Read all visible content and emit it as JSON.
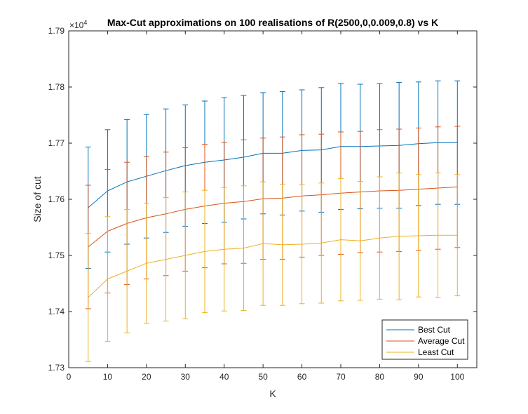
{
  "chart_data": {
    "type": "line",
    "title": "Max-Cut approximations on 100 realisations of R(2500,0,0.009,0.8) vs K",
    "xlabel": "K",
    "ylabel": "Size of cut",
    "y_exponent_label": "×10",
    "y_exponent_power": "4",
    "xlim": [
      0,
      105
    ],
    "ylim": [
      17300,
      17900
    ],
    "xticks": [
      0,
      10,
      20,
      30,
      40,
      50,
      60,
      70,
      80,
      90,
      100
    ],
    "xtick_labels": [
      "0",
      "10",
      "20",
      "30",
      "40",
      "50",
      "60",
      "70",
      "80",
      "90",
      "100"
    ],
    "yticks": [
      17300,
      17400,
      17500,
      17600,
      17700,
      17800,
      17900
    ],
    "ytick_labels": [
      "1.73",
      "1.74",
      "1.75",
      "1.76",
      "1.77",
      "1.78",
      "1.79"
    ],
    "grid": false,
    "legend_position": "bottom-right",
    "x": [
      5,
      10,
      15,
      20,
      25,
      30,
      35,
      40,
      45,
      50,
      55,
      60,
      65,
      70,
      75,
      80,
      85,
      90,
      95,
      100
    ],
    "series": [
      {
        "name": "Best Cut",
        "color": "#0072BD",
        "values": [
          17585,
          17615,
          17631,
          17641,
          17651,
          17660,
          17666,
          17670,
          17675,
          17682,
          17682,
          17687,
          17688,
          17694,
          17694,
          17695,
          17696,
          17699,
          17701,
          17701
        ],
        "errors": [
          108,
          109,
          111,
          110,
          110,
          108,
          109,
          111,
          110,
          108,
          110,
          108,
          111,
          112,
          111,
          111,
          112,
          110,
          110,
          110
        ]
      },
      {
        "name": "Average Cut",
        "color": "#D95319",
        "values": [
          17515,
          17543,
          17557,
          17567,
          17574,
          17582,
          17588,
          17593,
          17596,
          17601,
          17602,
          17606,
          17608,
          17611,
          17613,
          17615,
          17616,
          17618,
          17620,
          17622
        ],
        "errors": [
          110,
          110,
          109,
          109,
          110,
          110,
          110,
          108,
          110,
          108,
          109,
          109,
          108,
          109,
          108,
          109,
          109,
          109,
          109,
          108
        ]
      },
      {
        "name": "Least Cut",
        "color": "#EDB120",
        "values": [
          17425,
          17458,
          17472,
          17486,
          17493,
          17500,
          17507,
          17511,
          17513,
          17521,
          17519,
          17520,
          17522,
          17528,
          17526,
          17531,
          17534,
          17535,
          17536,
          17536
        ],
        "errors": [
          114,
          111,
          110,
          107,
          110,
          113,
          109,
          110,
          111,
          110,
          108,
          106,
          107,
          109,
          106,
          109,
          113,
          109,
          111,
          108
        ]
      }
    ]
  }
}
